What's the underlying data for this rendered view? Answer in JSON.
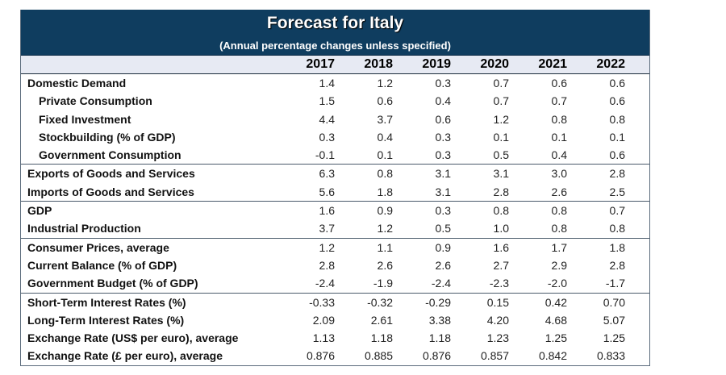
{
  "title": "Forecast for Italy",
  "subtitle": "(Annual percentage changes unless specified)",
  "years": [
    "2017",
    "2018",
    "2019",
    "2020",
    "2021",
    "2022"
  ],
  "rows": [
    {
      "label": "Domestic Demand",
      "indent": false,
      "sep": false,
      "values": [
        "1.4",
        "1.2",
        "0.3",
        "0.7",
        "0.6",
        "0.6"
      ]
    },
    {
      "label": "Private Consumption",
      "indent": true,
      "sep": false,
      "values": [
        "1.5",
        "0.6",
        "0.4",
        "0.7",
        "0.7",
        "0.6"
      ]
    },
    {
      "label": "Fixed Investment",
      "indent": true,
      "sep": false,
      "values": [
        "4.4",
        "3.7",
        "0.6",
        "1.2",
        "0.8",
        "0.8"
      ]
    },
    {
      "label": "Stockbuilding (% of GDP)",
      "indent": true,
      "sep": false,
      "values": [
        "0.3",
        "0.4",
        "0.3",
        "0.1",
        "0.1",
        "0.1"
      ]
    },
    {
      "label": "Government Consumption",
      "indent": true,
      "sep": false,
      "values": [
        "-0.1",
        "0.1",
        "0.3",
        "0.5",
        "0.4",
        "0.6"
      ]
    },
    {
      "label": "Exports of Goods and Services",
      "indent": false,
      "sep": true,
      "values": [
        "6.3",
        "0.8",
        "3.1",
        "3.1",
        "3.0",
        "2.8"
      ]
    },
    {
      "label": "Imports of Goods and Services",
      "indent": false,
      "sep": false,
      "values": [
        "5.6",
        "1.8",
        "3.1",
        "2.8",
        "2.6",
        "2.5"
      ]
    },
    {
      "label": "GDP",
      "indent": false,
      "sep": true,
      "values": [
        "1.6",
        "0.9",
        "0.3",
        "0.8",
        "0.8",
        "0.7"
      ]
    },
    {
      "label": "Industrial Production",
      "indent": false,
      "sep": false,
      "values": [
        "3.7",
        "1.2",
        "0.5",
        "1.0",
        "0.8",
        "0.8"
      ]
    },
    {
      "label": "Consumer Prices, average",
      "indent": false,
      "sep": true,
      "values": [
        "1.2",
        "1.1",
        "0.9",
        "1.6",
        "1.7",
        "1.8"
      ]
    },
    {
      "label": "Current Balance (% of GDP)",
      "indent": false,
      "sep": false,
      "values": [
        "2.8",
        "2.6",
        "2.6",
        "2.7",
        "2.9",
        "2.8"
      ]
    },
    {
      "label": "Government Budget (% of GDP)",
      "indent": false,
      "sep": false,
      "values": [
        "-2.4",
        "-1.9",
        "-2.4",
        "-2.3",
        "-2.0",
        "-1.7"
      ]
    },
    {
      "label": "Short-Term Interest Rates (%)",
      "indent": false,
      "sep": true,
      "values": [
        "-0.33",
        "-0.32",
        "-0.29",
        "0.15",
        "0.42",
        "0.70"
      ]
    },
    {
      "label": "Long-Term Interest Rates (%)",
      "indent": false,
      "sep": false,
      "values": [
        "2.09",
        "2.61",
        "3.38",
        "4.20",
        "4.68",
        "5.07"
      ]
    },
    {
      "label": "Exchange Rate (US$ per euro), average",
      "indent": false,
      "sep": false,
      "values": [
        "1.13",
        "1.18",
        "1.18",
        "1.23",
        "1.25",
        "1.25"
      ]
    },
    {
      "label": "Exchange Rate (£ per euro), average",
      "indent": false,
      "sep": false,
      "values": [
        "0.876",
        "0.885",
        "0.876",
        "0.857",
        "0.842",
        "0.833"
      ]
    }
  ]
}
